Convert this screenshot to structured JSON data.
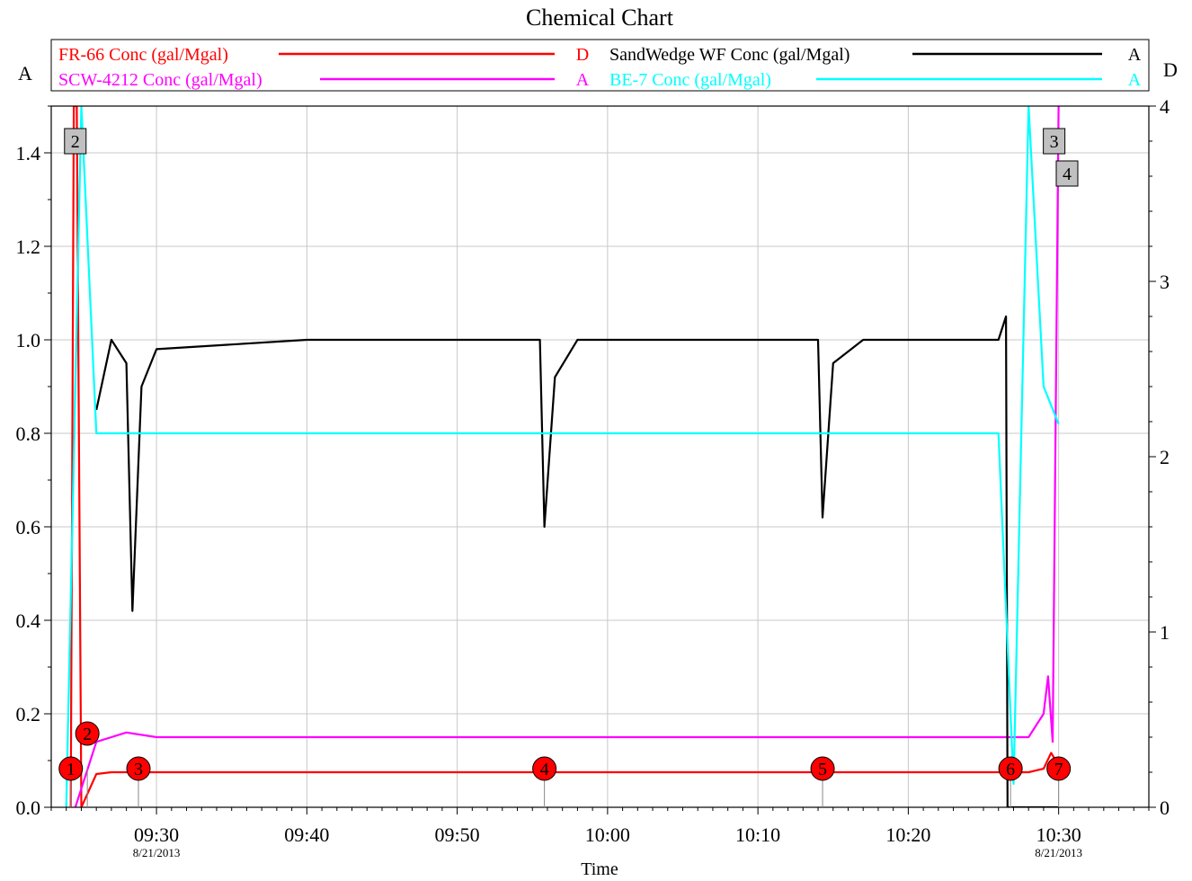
{
  "chart_data": {
    "type": "line",
    "title": "Chemical Chart",
    "xlabel": "Time",
    "x_ticks": [
      {
        "label": "09:30",
        "date": "8/21/2013"
      },
      {
        "label": "09:40",
        "date": ""
      },
      {
        "label": "09:50",
        "date": ""
      },
      {
        "label": "10:00",
        "date": ""
      },
      {
        "label": "10:10",
        "date": ""
      },
      {
        "label": "10:20",
        "date": ""
      },
      {
        "label": "10:30",
        "date": "8/21/2013"
      }
    ],
    "x_range": [
      "09:23",
      "10:36"
    ],
    "y_axes": {
      "A": {
        "label": "A",
        "range": [
          0,
          1.5
        ],
        "ticks": [
          "0.0",
          "0.2",
          "0.4",
          "0.6",
          "0.8",
          "1.0",
          "1.2",
          "1.4"
        ]
      },
      "D": {
        "label": "D",
        "range": [
          0,
          4
        ],
        "ticks": [
          "0",
          "1",
          "2",
          "3",
          "4"
        ]
      }
    },
    "grid": true,
    "legend_placement": "top",
    "series": [
      {
        "name": "FR-66 Conc (gal/Mgal)",
        "axis": "D",
        "color": "#ff0000",
        "points": [
          [
            "09:24.3",
            0
          ],
          [
            "09:24.5",
            4
          ],
          [
            "09:24.7",
            4
          ],
          [
            "09:25.0",
            0
          ],
          [
            "09:26",
            0.19
          ],
          [
            "09:27",
            0.2
          ],
          [
            "09:30",
            0.2
          ],
          [
            "09:40",
            0.2
          ],
          [
            "09:50",
            0.2
          ],
          [
            "10:00",
            0.2
          ],
          [
            "10:10",
            0.2
          ],
          [
            "10:20",
            0.2
          ],
          [
            "10:28",
            0.2
          ],
          [
            "10:29",
            0.22
          ],
          [
            "10:29.5",
            0.31
          ],
          [
            "10:30",
            0.24
          ]
        ]
      },
      {
        "name": "SCW-4212 Conc (gal/Mgal)",
        "axis": "A",
        "color": "#ff00ff",
        "points": [
          [
            "09:24.6",
            0
          ],
          [
            "09:26",
            0.14
          ],
          [
            "09:27",
            0.15
          ],
          [
            "09:28",
            0.16
          ],
          [
            "09:30",
            0.15
          ],
          [
            "09:40",
            0.15
          ],
          [
            "09:50",
            0.15
          ],
          [
            "10:00",
            0.15
          ],
          [
            "10:10",
            0.15
          ],
          [
            "10:20",
            0.15
          ],
          [
            "10:28",
            0.15
          ],
          [
            "10:29",
            0.2
          ],
          [
            "10:29.3",
            0.28
          ],
          [
            "10:29.6",
            0.14
          ],
          [
            "10:30",
            1.5
          ]
        ]
      },
      {
        "name": "SandWedge WF Conc (gal/Mgal)",
        "axis": "A",
        "color": "#000000",
        "points": [
          [
            "09:26",
            0.85
          ],
          [
            "09:27",
            1.0
          ],
          [
            "09:28",
            0.95
          ],
          [
            "09:28.4",
            0.42
          ],
          [
            "09:29",
            0.9
          ],
          [
            "09:30",
            0.98
          ],
          [
            "09:40",
            1.0
          ],
          [
            "09:50",
            1.0
          ],
          [
            "09:55.5",
            1.0
          ],
          [
            "09:55.8",
            0.6
          ],
          [
            "09:56.5",
            0.92
          ],
          [
            "09:58",
            1.0
          ],
          [
            "10:05",
            1.0
          ],
          [
            "10:14",
            1.0
          ],
          [
            "10:14.3",
            0.62
          ],
          [
            "10:15",
            0.95
          ],
          [
            "10:17",
            1.0
          ],
          [
            "10:26",
            1.0
          ],
          [
            "10:26.5",
            1.05
          ],
          [
            "10:26.6",
            0
          ],
          [
            "10:30",
            0
          ]
        ]
      },
      {
        "name": "BE-7 Conc (gal/Mgal)",
        "axis": "A",
        "color": "#00ffff",
        "points": [
          [
            "09:24",
            0.0
          ],
          [
            "09:25",
            1.5
          ],
          [
            "09:26",
            0.8
          ],
          [
            "09:30",
            0.8
          ],
          [
            "09:40",
            0.8
          ],
          [
            "09:50",
            0.8
          ],
          [
            "10:00",
            0.8
          ],
          [
            "10:10",
            0.8
          ],
          [
            "10:20",
            0.8
          ],
          [
            "10:26",
            0.8
          ],
          [
            "10:27",
            0.05
          ],
          [
            "10:28",
            1.5
          ],
          [
            "10:29",
            0.9
          ],
          [
            "10:30",
            0.82
          ]
        ]
      }
    ],
    "legend_axis_tags": [
      "D",
      "A",
      "A",
      "A"
    ],
    "events_red": [
      {
        "label": "1",
        "time": "09:24.3"
      },
      {
        "label": "2",
        "time": "09:25.4"
      },
      {
        "label": "3",
        "time": "09:28.8"
      },
      {
        "label": "4",
        "time": "09:55.8"
      },
      {
        "label": "5",
        "time": "10:14.3"
      },
      {
        "label": "6",
        "time": "10:26.8"
      },
      {
        "label": "7",
        "time": "10:30.0"
      }
    ],
    "events_gray": [
      {
        "label": "2",
        "time": "09:24.6"
      },
      {
        "label": "3",
        "time": "10:29.7"
      },
      {
        "label": "4",
        "time": "10:30.2"
      }
    ]
  }
}
